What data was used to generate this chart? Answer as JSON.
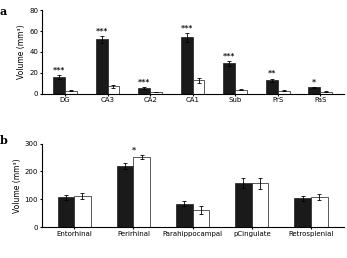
{
  "panel_a": {
    "categories": [
      "DG",
      "CA3",
      "CA2",
      "CA1",
      "Sub",
      "PrS",
      "PaS"
    ],
    "black_values": [
      16,
      52,
      5.5,
      54,
      29,
      13,
      6
    ],
    "white_values": [
      3,
      7,
      1.5,
      13,
      4,
      3,
      2
    ],
    "black_errors": [
      1.5,
      3,
      0.7,
      4,
      2,
      1.5,
      0.7
    ],
    "white_errors": [
      0.5,
      1.5,
      0.3,
      2.5,
      0.5,
      0.5,
      0.3
    ],
    "significance": [
      "***",
      "***",
      "***",
      "***",
      "***",
      "**",
      "*"
    ],
    "ylabel": "Volume (mm³)",
    "ylim": [
      0,
      80
    ],
    "yticks": [
      0,
      20,
      40,
      60,
      80
    ]
  },
  "panel_b": {
    "categories": [
      "Entorhinal",
      "Perirhinal",
      "Parahippocampal",
      "pCingulate",
      "Retrosplenial"
    ],
    "black_values": [
      107,
      220,
      83,
      160,
      103
    ],
    "white_values": [
      112,
      252,
      62,
      158,
      108
    ],
    "black_errors": [
      8,
      10,
      9,
      18,
      8
    ],
    "white_errors": [
      10,
      8,
      15,
      20,
      12
    ],
    "significance": [
      null,
      "*",
      null,
      null,
      null
    ],
    "ylabel": "Volume (mm³)",
    "ylim": [
      0,
      300
    ],
    "yticks": [
      0,
      100,
      200,
      300
    ]
  },
  "bar_width": 0.28,
  "black_color": "#1a1a1a",
  "white_color": "#ffffff",
  "edge_color": "#1a1a1a",
  "sig_fontsize": 5.5,
  "label_fontsize": 5.5,
  "tick_fontsize": 5,
  "panel_label_fontsize": 8
}
